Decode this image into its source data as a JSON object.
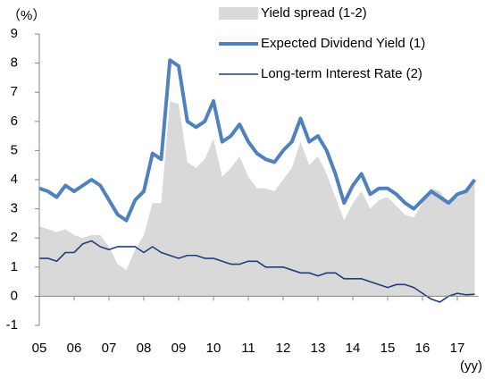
{
  "chart_data": {
    "type": "line",
    "y_unit": "（%）",
    "x_unit": "(yy)",
    "x": [
      2005,
      2005.25,
      2005.5,
      2005.75,
      2006,
      2006.25,
      2006.5,
      2006.75,
      2007,
      2007.25,
      2007.5,
      2007.75,
      2008,
      2008.25,
      2008.5,
      2008.75,
      2009,
      2009.25,
      2009.5,
      2009.75,
      2010,
      2010.25,
      2010.5,
      2010.75,
      2011,
      2011.25,
      2011.5,
      2011.75,
      2012,
      2012.25,
      2012.5,
      2012.75,
      2013,
      2013.25,
      2013.5,
      2013.75,
      2014,
      2014.25,
      2014.5,
      2014.75,
      2015,
      2015.25,
      2015.5,
      2015.75,
      2016,
      2016.25,
      2016.5,
      2016.75,
      2017,
      2017.25,
      2017.5
    ],
    "series": [
      {
        "name": "Yield spread (1-2)",
        "kind": "area",
        "color": "#d9d9d9",
        "values": [
          2.4,
          2.3,
          2.2,
          2.3,
          2.1,
          2.0,
          2.1,
          2.1,
          1.7,
          1.1,
          0.9,
          1.6,
          2.1,
          3.2,
          3.2,
          6.7,
          6.6,
          4.6,
          4.4,
          4.7,
          5.4,
          4.1,
          4.4,
          4.8,
          4.1,
          3.7,
          3.7,
          3.6,
          4.0,
          4.4,
          5.3,
          4.5,
          4.8,
          4.2,
          3.4,
          2.6,
          3.2,
          3.6,
          3.0,
          3.3,
          3.4,
          3.1,
          2.8,
          2.7,
          3.2,
          3.7,
          3.6,
          3.2,
          3.4,
          3.55,
          3.93
        ]
      },
      {
        "name": "Expected Dividend Yield (1)",
        "kind": "line",
        "color": "#4f81bd",
        "width": 4,
        "values": [
          3.7,
          3.6,
          3.4,
          3.8,
          3.6,
          3.8,
          4.0,
          3.8,
          3.3,
          2.8,
          2.6,
          3.3,
          3.6,
          4.9,
          4.7,
          8.1,
          7.9,
          6.0,
          5.8,
          6.0,
          6.7,
          5.3,
          5.5,
          5.9,
          5.3,
          4.9,
          4.7,
          4.6,
          5.0,
          5.3,
          6.1,
          5.3,
          5.5,
          5.0,
          4.2,
          3.2,
          3.8,
          4.2,
          3.5,
          3.7,
          3.7,
          3.5,
          3.2,
          3.0,
          3.3,
          3.6,
          3.4,
          3.2,
          3.5,
          3.6,
          4.0
        ]
      },
      {
        "name": "Long-term Interest Rate (2)",
        "kind": "line",
        "color": "#1f3f7a",
        "width": 1.6,
        "values": [
          1.3,
          1.3,
          1.2,
          1.5,
          1.5,
          1.8,
          1.9,
          1.7,
          1.6,
          1.7,
          1.7,
          1.7,
          1.5,
          1.7,
          1.5,
          1.4,
          1.3,
          1.4,
          1.4,
          1.3,
          1.3,
          1.2,
          1.1,
          1.1,
          1.2,
          1.2,
          1.0,
          1.0,
          1.0,
          0.9,
          0.8,
          0.8,
          0.7,
          0.8,
          0.8,
          0.6,
          0.6,
          0.6,
          0.5,
          0.4,
          0.3,
          0.4,
          0.4,
          0.3,
          0.1,
          -0.1,
          -0.2,
          0.0,
          0.1,
          0.05,
          0.07
        ]
      }
    ],
    "ylim": [
      -1,
      9
    ],
    "yticks": [
      -1,
      0,
      1,
      2,
      3,
      4,
      5,
      6,
      7,
      8,
      9
    ],
    "xlim": [
      2005,
      2017.6
    ],
    "xticks": [
      {
        "value": 2005,
        "label": "05"
      },
      {
        "value": 2006,
        "label": "06"
      },
      {
        "value": 2007,
        "label": "07"
      },
      {
        "value": 2008,
        "label": "08"
      },
      {
        "value": 2009,
        "label": "09"
      },
      {
        "value": 2010,
        "label": "10"
      },
      {
        "value": 2011,
        "label": "11"
      },
      {
        "value": 2012,
        "label": "12"
      },
      {
        "value": 2013,
        "label": "13"
      },
      {
        "value": 2014,
        "label": "14"
      },
      {
        "value": 2015,
        "label": "15"
      },
      {
        "value": 2016,
        "label": "16"
      },
      {
        "value": 2017,
        "label": "17"
      }
    ],
    "grid": false,
    "legend": "top-right"
  }
}
